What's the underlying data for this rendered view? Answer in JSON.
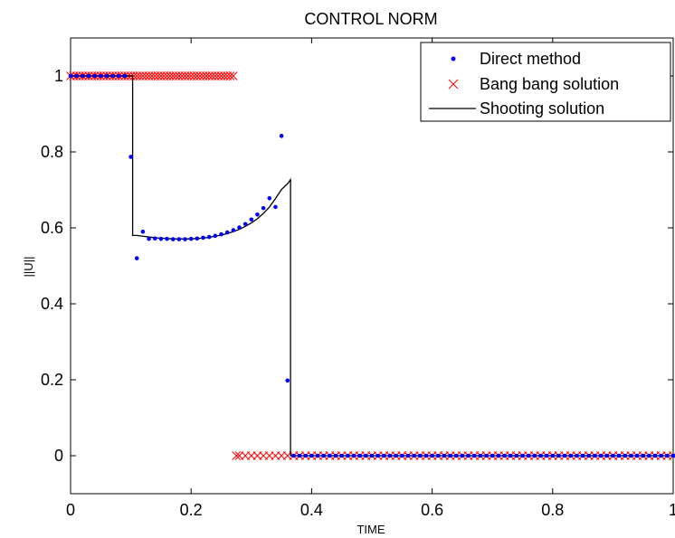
{
  "chart_data": {
    "type": "line",
    "title": "CONTROL NORM",
    "xlabel": "TIME",
    "ylabel": "||U||",
    "xlim": [
      0,
      1
    ],
    "ylim": [
      -0.1,
      1.1
    ],
    "xticks": [
      0,
      0.2,
      0.4,
      0.6,
      0.8,
      1
    ],
    "xtick_labels": [
      "0",
      "0.2",
      "0.4",
      "0.6",
      "0.8",
      "1"
    ],
    "yticks": [
      0,
      0.2,
      0.4,
      0.6,
      0.8,
      1
    ],
    "ytick_labels": [
      "0",
      "0.2",
      "0.4",
      "0.6",
      "0.8",
      "1"
    ],
    "grid": false,
    "legend_position": "top-right",
    "series": [
      {
        "name": "Direct method",
        "style": "dots",
        "color": "#0000ff",
        "x": [
          0,
          0.01,
          0.02,
          0.03,
          0.04,
          0.05,
          0.06,
          0.07,
          0.08,
          0.09,
          0.1,
          0.11,
          0.12,
          0.13,
          0.14,
          0.15,
          0.16,
          0.17,
          0.18,
          0.19,
          0.2,
          0.21,
          0.22,
          0.23,
          0.24,
          0.25,
          0.26,
          0.27,
          0.28,
          0.29,
          0.3,
          0.31,
          0.32,
          0.33,
          0.34,
          0.35,
          0.36,
          0.37,
          0.38,
          0.39,
          0.4,
          0.41,
          0.42,
          0.43,
          0.44,
          0.45,
          0.46,
          0.47,
          0.48,
          0.49,
          0.5,
          0.51,
          0.52,
          0.53,
          0.54,
          0.55,
          0.56,
          0.57,
          0.58,
          0.59,
          0.6,
          0.61,
          0.62,
          0.63,
          0.64,
          0.65,
          0.66,
          0.67,
          0.68,
          0.69,
          0.7,
          0.71,
          0.72,
          0.73,
          0.74,
          0.75,
          0.76,
          0.77,
          0.78,
          0.79,
          0.8,
          0.81,
          0.82,
          0.83,
          0.84,
          0.85,
          0.86,
          0.87,
          0.88,
          0.89,
          0.9,
          0.91,
          0.92,
          0.93,
          0.94,
          0.95,
          0.96,
          0.97,
          0.98,
          0.99,
          1
        ],
        "y": [
          1,
          1,
          1,
          1,
          1,
          1,
          1,
          1,
          1,
          1,
          0.787,
          0.52,
          0.59,
          0.571,
          0.572,
          0.571,
          0.571,
          0.57,
          0.57,
          0.57,
          0.571,
          0.572,
          0.574,
          0.576,
          0.579,
          0.583,
          0.588,
          0.594,
          0.601,
          0.61,
          0.622,
          0.635,
          0.652,
          0.678,
          0.655,
          0.842,
          0.198,
          0,
          0,
          0,
          0,
          0,
          0,
          0,
          0,
          0,
          0,
          0,
          0,
          0,
          0,
          0,
          0,
          0,
          0,
          0,
          0,
          0,
          0,
          0,
          0,
          0,
          0,
          0,
          0,
          0,
          0,
          0,
          0,
          0,
          0,
          0,
          0,
          0,
          0,
          0,
          0,
          0,
          0,
          0,
          0,
          0,
          0,
          0,
          0,
          0,
          0,
          0,
          0,
          0,
          0,
          0,
          0,
          0,
          0,
          0,
          0,
          0,
          0,
          0,
          0
        ]
      },
      {
        "name": "Bang bang solution",
        "style": "x-markers",
        "color": "#ff0000",
        "x": [
          0,
          0.005,
          0.01,
          0.015,
          0.02,
          0.025,
          0.03,
          0.035,
          0.04,
          0.045,
          0.05,
          0.055,
          0.06,
          0.065,
          0.07,
          0.075,
          0.08,
          0.085,
          0.09,
          0.095,
          0.1,
          0.105,
          0.11,
          0.115,
          0.12,
          0.125,
          0.13,
          0.135,
          0.14,
          0.145,
          0.15,
          0.155,
          0.16,
          0.165,
          0.17,
          0.175,
          0.18,
          0.185,
          0.19,
          0.195,
          0.2,
          0.205,
          0.21,
          0.215,
          0.22,
          0.225,
          0.23,
          0.235,
          0.24,
          0.245,
          0.25,
          0.255,
          0.26,
          0.265,
          0.27,
          0.275,
          0.28,
          0.29,
          0.3,
          0.31,
          0.32,
          0.33,
          0.34,
          0.35,
          0.36,
          0.37,
          0.38,
          0.39,
          0.4,
          0.41,
          0.42,
          0.43,
          0.44,
          0.45,
          0.46,
          0.47,
          0.48,
          0.49,
          0.5,
          0.51,
          0.52,
          0.53,
          0.54,
          0.55,
          0.56,
          0.57,
          0.58,
          0.59,
          0.6,
          0.61,
          0.62,
          0.63,
          0.64,
          0.65,
          0.66,
          0.67,
          0.68,
          0.69,
          0.7,
          0.71,
          0.72,
          0.73,
          0.74,
          0.75,
          0.76,
          0.77,
          0.78,
          0.79,
          0.8,
          0.81,
          0.82,
          0.83,
          0.84,
          0.85,
          0.86,
          0.87,
          0.88,
          0.89,
          0.9,
          0.91,
          0.92,
          0.93,
          0.94,
          0.95,
          0.96,
          0.97,
          0.98,
          0.99,
          1
        ],
        "y": [
          1,
          1,
          1,
          1,
          1,
          1,
          1,
          1,
          1,
          1,
          1,
          1,
          1,
          1,
          1,
          1,
          1,
          1,
          1,
          1,
          1,
          1,
          1,
          1,
          1,
          1,
          1,
          1,
          1,
          1,
          1,
          1,
          1,
          1,
          1,
          1,
          1,
          1,
          1,
          1,
          1,
          1,
          1,
          1,
          1,
          1,
          1,
          1,
          1,
          1,
          1,
          1,
          1,
          1,
          1,
          0,
          0,
          0,
          0,
          0,
          0,
          0,
          0,
          0,
          0,
          0,
          0,
          0,
          0,
          0,
          0,
          0,
          0,
          0,
          0,
          0,
          0,
          0,
          0,
          0,
          0,
          0,
          0,
          0,
          0,
          0,
          0,
          0,
          0,
          0,
          0,
          0,
          0,
          0,
          0,
          0,
          0,
          0,
          0,
          0,
          0,
          0,
          0,
          0,
          0,
          0,
          0,
          0,
          0,
          0,
          0,
          0,
          0,
          0,
          0,
          0,
          0,
          0,
          0,
          0,
          0,
          0,
          0,
          0,
          0,
          0,
          0,
          0,
          0
        ]
      },
      {
        "name": "Shooting solution",
        "style": "line",
        "color": "#000000",
        "x": [
          0,
          0.103,
          0.103,
          0.11,
          0.12,
          0.13,
          0.14,
          0.15,
          0.16,
          0.17,
          0.18,
          0.19,
          0.2,
          0.21,
          0.22,
          0.23,
          0.24,
          0.25,
          0.26,
          0.27,
          0.28,
          0.29,
          0.3,
          0.31,
          0.32,
          0.33,
          0.34,
          0.35,
          0.36,
          0.365,
          0.365,
          0.37,
          0.4,
          0.5,
          0.6,
          0.7,
          0.8,
          0.9,
          1
        ],
        "y": [
          1,
          1,
          0.58,
          0.58,
          0.578,
          0.576,
          0.574,
          0.573,
          0.572,
          0.571,
          0.571,
          0.571,
          0.571,
          0.572,
          0.573,
          0.575,
          0.578,
          0.581,
          0.585,
          0.59,
          0.596,
          0.604,
          0.613,
          0.624,
          0.638,
          0.655,
          0.677,
          0.701,
          0.716,
          0.727,
          0,
          0,
          0,
          0,
          0,
          0,
          0,
          0,
          0
        ]
      }
    ]
  }
}
